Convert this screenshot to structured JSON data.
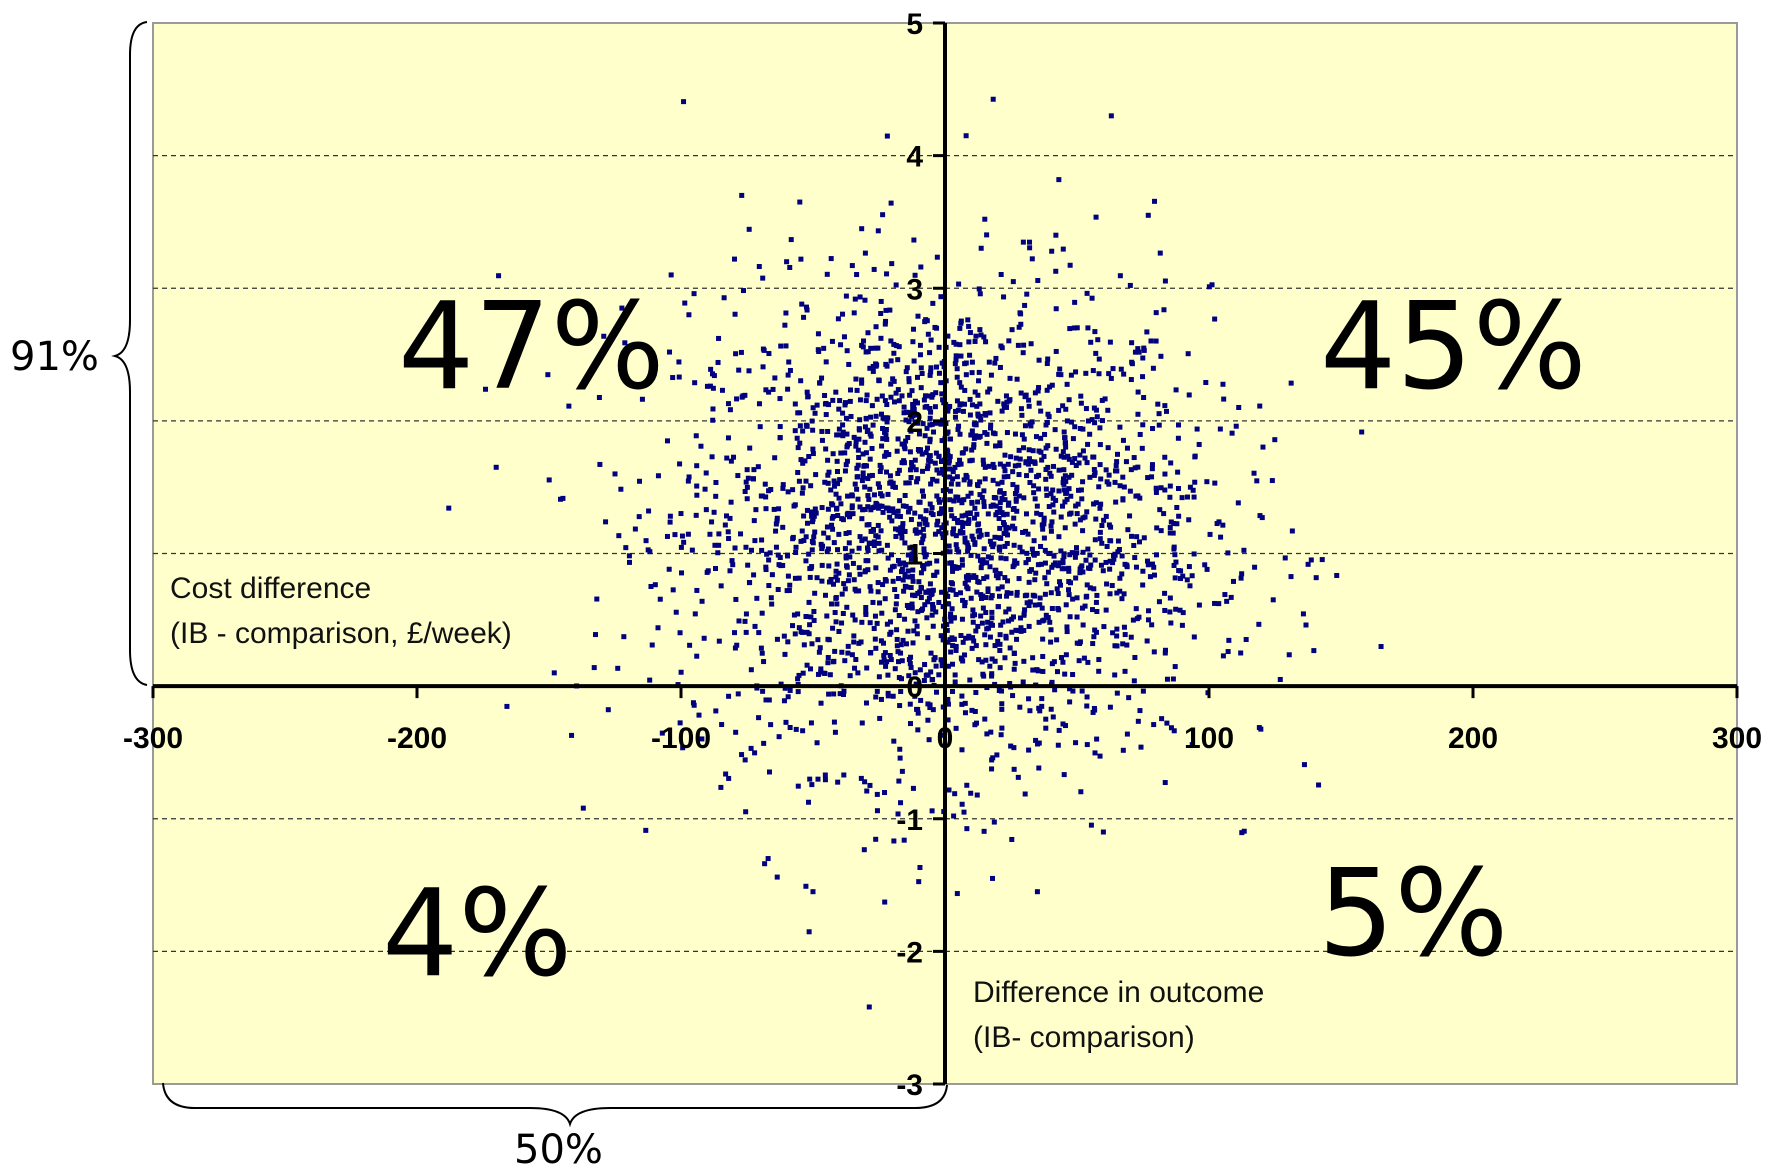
{
  "chart_data": {
    "type": "scatter",
    "title": "",
    "xlabel": [
      "Difference in outcome",
      "(IB- comparison)"
    ],
    "ylabel": [
      "Cost difference",
      "(IB - comparison, £/week)"
    ],
    "xlim": [
      -300,
      300
    ],
    "ylim": [
      -3,
      5
    ],
    "xticks": [
      -300,
      -200,
      -100,
      0,
      100,
      200,
      300
    ],
    "yticks": [
      -3,
      -2,
      -1,
      0,
      1,
      2,
      3,
      4,
      5
    ],
    "x_tick_labels": [
      "-300",
      "-200",
      "-100",
      "0",
      "100",
      "200",
      "300"
    ],
    "y_tick_labels": [
      "-3",
      "-2",
      "-1",
      "0",
      "1",
      "2",
      "3",
      "4",
      "5"
    ],
    "gridlines": "horizontal dashed",
    "background_color": "#FFFFCC",
    "marker_color": "#000080",
    "quadrant_percentages": {
      "upper_left": "47%",
      "upper_right": "45%",
      "lower_left": "4%",
      "lower_right": "5%"
    },
    "brace_annotations": {
      "cost_positive_share": "91%",
      "outcome_negative_share": "50%"
    },
    "series": [
      {
        "approx_point_count": 2500,
        "x_mean": 0,
        "x_sd": 50,
        "y_mean": 1.2,
        "y_sd": 0.9,
        "sample_points": [
          [
            -77,
            3.7
          ],
          [
            -55,
            3.65
          ],
          [
            8,
            4.15
          ],
          [
            63,
            4.3
          ],
          [
            77,
            3.55
          ],
          [
            -170,
            1.65
          ],
          [
            -148,
            0.1
          ],
          [
            -137,
            -0.92
          ],
          [
            -125,
            1.6
          ],
          [
            124,
            1.55
          ],
          [
            127,
            0.05
          ],
          [
            112,
            0.25
          ],
          [
            -67,
            -1.3
          ],
          [
            -50,
            -1.55
          ],
          [
            60,
            -1.1
          ],
          [
            35,
            -1.55
          ],
          [
            18,
            -1.45
          ],
          [
            -60,
            3.2
          ],
          [
            42,
            3.4
          ],
          [
            -97,
            2.8
          ]
        ]
      }
    ]
  }
}
